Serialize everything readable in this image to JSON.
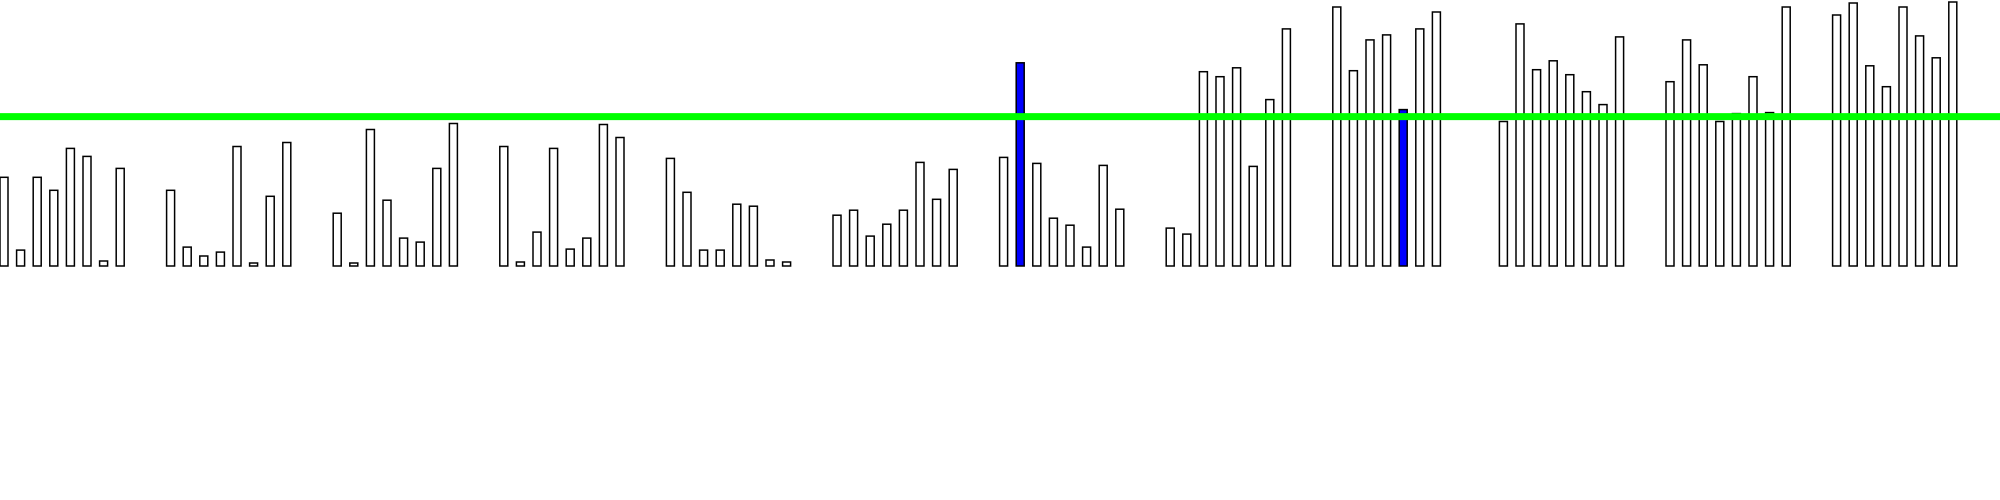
{
  "chart_data": {
    "type": "bar",
    "ylim": [
      0,
      265
    ],
    "grid": false,
    "threshold": 150,
    "colors": {
      "bar_fill": "#ffffff",
      "bar_stroke": "#000000",
      "highlight_fill": "#0000ff",
      "threshold_line": "#00ff00"
    },
    "groups": [
      {
        "values": [
          89,
          16,
          89,
          76,
          118,
          110,
          5,
          98
        ]
      },
      {
        "values": [
          76,
          19,
          10,
          14,
          120,
          2,
          70,
          124
        ]
      },
      {
        "values": [
          53,
          3,
          137,
          66,
          28,
          24,
          98,
          143
        ]
      },
      {
        "values": [
          120,
          4,
          34,
          118,
          17,
          28,
          142,
          129
        ]
      },
      {
        "values": [
          108,
          74,
          16,
          16,
          62,
          60,
          6,
          4
        ]
      },
      {
        "values": [
          51,
          56,
          30,
          42,
          56,
          104,
          67,
          97
        ]
      },
      {
        "values": [
          109,
          204,
          103,
          48,
          41,
          19,
          101,
          57
        ]
      },
      {
        "values": [
          38,
          32,
          195,
          190,
          199,
          100,
          167,
          238
        ]
      },
      {
        "values": [
          260,
          196,
          227,
          232,
          157,
          238,
          255
        ]
      },
      {
        "values": [
          145,
          243,
          197,
          206,
          192,
          175,
          162,
          230
        ]
      },
      {
        "values": [
          185,
          227,
          202,
          145,
          153,
          190,
          154,
          260
        ]
      },
      {
        "values": [
          252,
          264,
          201,
          180,
          260,
          231,
          209,
          265
        ]
      }
    ],
    "highlighted": [
      [
        6,
        1
      ],
      [
        8,
        4
      ]
    ]
  }
}
